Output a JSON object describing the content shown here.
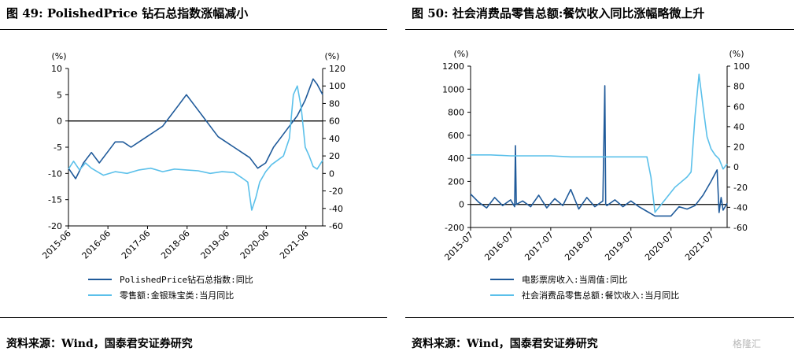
{
  "colors": {
    "dark_blue": "#1f5a9a",
    "light_blue": "#5bc0ea",
    "axis": "#000000"
  },
  "left": {
    "title": "图 49: PolishedPrice 钻石总指数涨幅减小",
    "source": "资料来源：Wind，国泰君安证券研究",
    "chart_data": {
      "type": "line",
      "y_left_unit": "(%)",
      "y_right_unit": "(%)",
      "y_left_ticks": [
        "10",
        "5",
        "0",
        "-5",
        "-10",
        "-15",
        "-20"
      ],
      "y_right_ticks": [
        "120",
        "100",
        "80",
        "60",
        "40",
        "20",
        "0",
        "-20",
        "-40",
        "-60"
      ],
      "x_ticks": [
        "2015-06",
        "2016-06",
        "2017-06",
        "2018-06",
        "2019-06",
        "2020-06",
        "2021-06"
      ],
      "ylim_left": [
        -20,
        10
      ],
      "ylim_right": [
        -60,
        120
      ],
      "xlim": [
        2015.42,
        2021.84
      ],
      "series": [
        {
          "name": "PolishedPrice钻石总指数:同比",
          "axis": "left",
          "x": [
            2015.42,
            2015.6,
            2015.8,
            2016.0,
            2016.2,
            2016.4,
            2016.6,
            2016.8,
            2017.0,
            2017.2,
            2017.4,
            2017.6,
            2017.8,
            2018.0,
            2018.2,
            2018.4,
            2018.6,
            2018.8,
            2019.0,
            2019.2,
            2019.4,
            2019.6,
            2019.8,
            2020.0,
            2020.2,
            2020.4,
            2020.6,
            2020.8,
            2021.0,
            2021.2,
            2021.4,
            2021.5,
            2021.6,
            2021.7,
            2021.84
          ],
          "values": [
            -9,
            -11,
            -8,
            -6,
            -8,
            -6,
            -4,
            -4,
            -5,
            -4,
            -3,
            -2,
            -1,
            1,
            3,
            5,
            3,
            1,
            -1,
            -3,
            -4,
            -5,
            -6,
            -7,
            -9,
            -8,
            -5,
            -3,
            -1,
            1,
            4,
            6,
            8,
            7,
            5
          ]
        },
        {
          "name": "零售额:金银珠宝类:当月同比",
          "axis": "right",
          "x": [
            2015.42,
            2015.55,
            2015.7,
            2015.85,
            2016.0,
            2016.3,
            2016.6,
            2016.9,
            2017.2,
            2017.5,
            2017.8,
            2018.1,
            2018.4,
            2018.7,
            2019.0,
            2019.3,
            2019.6,
            2019.8,
            2019.95,
            2020.05,
            2020.15,
            2020.25,
            2020.4,
            2020.55,
            2020.7,
            2020.85,
            2021.0,
            2021.1,
            2021.2,
            2021.3,
            2021.4,
            2021.5,
            2021.6,
            2021.7,
            2021.84
          ],
          "values": [
            5,
            14,
            4,
            12,
            6,
            -2,
            2,
            0,
            4,
            6,
            2,
            5,
            4,
            3,
            0,
            2,
            1,
            -5,
            -10,
            -42,
            -28,
            -10,
            2,
            10,
            15,
            20,
            40,
            90,
            100,
            75,
            30,
            20,
            8,
            5,
            15
          ]
        }
      ]
    }
  },
  "right": {
    "title": "图 50: 社会消费品零售总额:餐饮收入同比涨幅略微上升",
    "source": "资料来源：Wind，国泰君安证券研究",
    "watermark": "格隆汇",
    "chart_data": {
      "type": "line",
      "y_left_unit": "(%)",
      "y_right_unit": "(%)",
      "y_left_ticks": [
        "1200",
        "1000",
        "800",
        "600",
        "400",
        "200",
        "0",
        "-200"
      ],
      "y_right_ticks": [
        "100",
        "80",
        "60",
        "40",
        "20",
        "0",
        "-20",
        "-40",
        "-60"
      ],
      "x_ticks": [
        "2015-07",
        "2016-07",
        "2017-07",
        "2018-07",
        "2019-07",
        "2020-07",
        "2021-07"
      ],
      "ylim_left": [
        -200,
        1200
      ],
      "ylim_right": [
        -60,
        100
      ],
      "xlim": [
        2015.5,
        2021.9
      ],
      "series": [
        {
          "name": "电影票房收入:当周值:同比",
          "axis": "left",
          "x": [
            2015.5,
            2015.7,
            2015.9,
            2016.1,
            2016.3,
            2016.5,
            2016.6,
            2016.62,
            2016.64,
            2016.8,
            2017.0,
            2017.2,
            2017.4,
            2017.6,
            2017.8,
            2018.0,
            2018.2,
            2018.4,
            2018.6,
            2018.8,
            2018.85,
            2018.87,
            2018.9,
            2019.1,
            2019.3,
            2019.5,
            2019.7,
            2019.9,
            2020.0,
            2020.1,
            2020.3,
            2020.5,
            2020.7,
            2020.9,
            2021.1,
            2021.3,
            2021.5,
            2021.65,
            2021.7,
            2021.75,
            2021.8,
            2021.9
          ],
          "values": [
            90,
            20,
            -30,
            60,
            -10,
            40,
            -20,
            510,
            0,
            30,
            -20,
            80,
            -30,
            50,
            -10,
            130,
            -40,
            60,
            -20,
            30,
            1030,
            0,
            -10,
            40,
            -20,
            30,
            -20,
            -60,
            -80,
            -100,
            -100,
            -100,
            -20,
            -40,
            -10,
            80,
            200,
            300,
            -70,
            60,
            -50,
            10
          ]
        },
        {
          "name": "社会消费品零售总额:餐饮收入:当月同比",
          "axis": "right",
          "x": [
            2015.5,
            2016.0,
            2016.5,
            2017.0,
            2017.5,
            2018.0,
            2018.5,
            2019.0,
            2019.5,
            2019.9,
            2020.0,
            2020.1,
            2020.3,
            2020.6,
            2020.9,
            2021.0,
            2021.1,
            2021.2,
            2021.3,
            2021.4,
            2021.5,
            2021.6,
            2021.7,
            2021.8,
            2021.9
          ],
          "values": [
            12,
            12,
            11,
            11,
            11,
            10,
            10,
            10,
            10,
            10,
            -10,
            -45,
            -35,
            -20,
            -10,
            -5,
            50,
            92,
            60,
            30,
            18,
            12,
            8,
            -2,
            3
          ]
        }
      ]
    }
  }
}
